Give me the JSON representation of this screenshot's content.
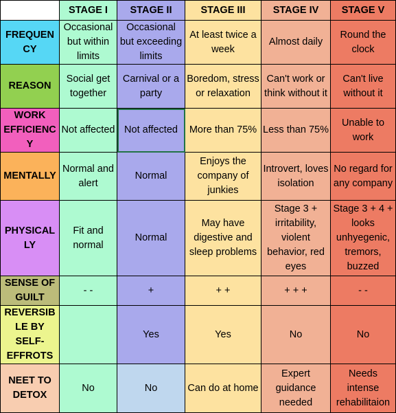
{
  "headers": [
    "STAGE I",
    "STAGE II",
    "STAGE III",
    "STAGE IV",
    "STAGE V"
  ],
  "rows": [
    {
      "label": "FREQUENCY",
      "label_color": "#56d7f5",
      "cells": [
        "Occasional but within limits",
        "Occasional but exceeding limits",
        "At least twice a week",
        "Almost daily",
        "Round the clock"
      ]
    },
    {
      "label": "REASON",
      "label_color": "#92d050",
      "cells": [
        "Social get together",
        "Carnival or a party",
        "Boredom, stress or relaxation",
        "Can't work or think without it",
        "Can't live without it"
      ]
    },
    {
      "label": "WORK EFFICIENCY",
      "label_color": "#f25fbd",
      "cells": [
        "Not affected",
        "Not affected",
        "More than 75%",
        "Less than 75%",
        "Unable to work"
      ]
    },
    {
      "label": "MENTALLY",
      "label_color": "#fbb25a",
      "cells": [
        "Normal and alert",
        "Normal",
        "Enjoys the company of junkies",
        "Introvert, loves isolation",
        "No regard for any company"
      ]
    },
    {
      "label": "PHYSICALLY",
      "label_color": "#d88ef5",
      "cells": [
        "Fit and normal",
        "Normal",
        "May have digestive and sleep problems",
        "Stage 3 + irritability, violent behavior, red eyes",
        "Stage 3 + 4 + looks unhyegenic, tremors, buzzed"
      ]
    },
    {
      "label": "SENSE OF GUILT",
      "label_color": "#bcbc7a",
      "cells": [
        "- -",
        "+",
        "+ +",
        "+ + +",
        "- -"
      ]
    },
    {
      "label": "REVERSIBLE BY SELF-EFFROTS",
      "label_color": "#ecf58e",
      "cells": [
        "",
        "Yes",
        "Yes",
        "No",
        "No"
      ]
    },
    {
      "label": "NEET TO DETOX",
      "label_color": "#f8cdb0",
      "cells": [
        "No",
        "No",
        "Can do at home",
        "Expert guidance needed",
        "Needs intense rehabilitaion"
      ]
    }
  ]
}
